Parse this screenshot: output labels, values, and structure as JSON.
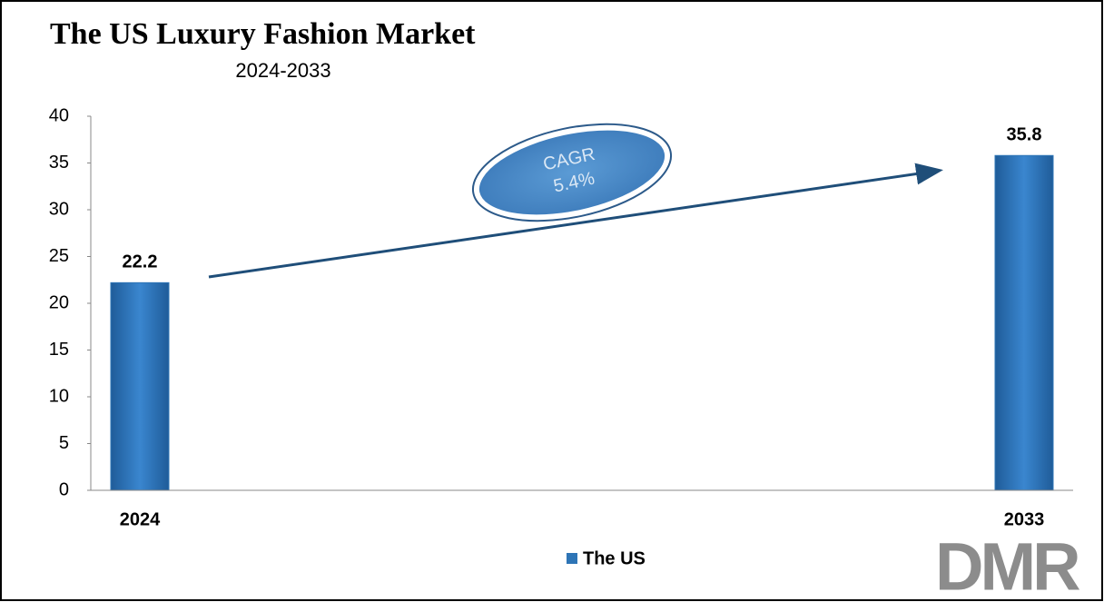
{
  "chart_data": {
    "type": "bar",
    "title": "The US Luxury Fashion Market",
    "subtitle": "2024-2033",
    "categories": [
      "2024",
      "2033"
    ],
    "series": [
      {
        "name": "The US",
        "color": "#2e75b6",
        "values": [
          22.2,
          35.8
        ]
      }
    ],
    "ylim": [
      0,
      40
    ],
    "yticks": [
      0,
      5,
      10,
      15,
      20,
      25,
      30,
      35,
      40
    ],
    "annotation": [
      "CAGR",
      "5.4%"
    ],
    "logo": "DMR"
  }
}
